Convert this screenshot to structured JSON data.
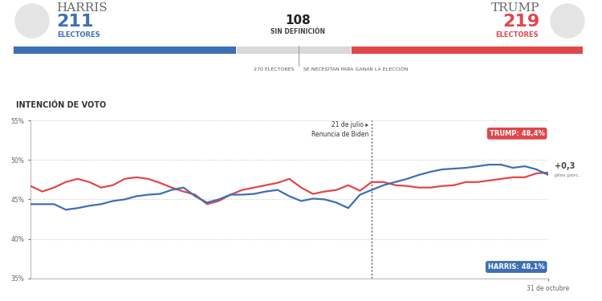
{
  "header": {
    "candidates": [
      {
        "name": "HARRIS",
        "electors": 211,
        "label": "ELECTORES",
        "color": "#3d6fb6"
      },
      {
        "name": "TRUMP",
        "electors": 219,
        "label": "ELECTORES",
        "color": "#e0474c"
      }
    ],
    "undecided": {
      "electors": 108,
      "label": "SIN DEFINICIÓN",
      "color": "#d9d9d9"
    },
    "threshold": {
      "electors": 270,
      "label": "270 ELECTORES",
      "note": "SE NECESITAN PARA GANAR LA ELECCIÓN"
    }
  },
  "chart_data": {
    "type": "line",
    "title": "INTENCIÓN DE VOTO",
    "categories": [
      null,
      null,
      null,
      null,
      null,
      null,
      null,
      null,
      null,
      null,
      null,
      null,
      null,
      null,
      null,
      null,
      null,
      null,
      null,
      null,
      null,
      null,
      null,
      null,
      null,
      null,
      null,
      null,
      null,
      null,
      null,
      null,
      null,
      null,
      null,
      null,
      null,
      null,
      null,
      null,
      null,
      null,
      null,
      null,
      "31 de octubre"
    ],
    "series": [
      {
        "name": "TRUMP",
        "color": "#e0474c",
        "end_label": "TRUMP: 48,4%",
        "values": [
          46.7,
          46.0,
          46.5,
          47.2,
          47.6,
          47.2,
          46.5,
          46.8,
          47.6,
          47.8,
          47.6,
          47.1,
          46.5,
          46.0,
          45.6,
          44.4,
          44.8,
          45.6,
          46.2,
          46.5,
          46.8,
          47.1,
          47.6,
          46.5,
          45.7,
          46.0,
          46.2,
          46.8,
          46.1,
          47.2,
          47.2,
          46.8,
          46.7,
          46.5,
          46.5,
          46.7,
          46.8,
          47.2,
          47.2,
          47.4,
          47.6,
          47.8,
          47.8,
          48.3,
          48.4
        ]
      },
      {
        "name": "HARRIS",
        "color": "#3d6fb6",
        "end_label": "HARRIS: 48,1%",
        "values": [
          44.4,
          44.4,
          44.4,
          43.7,
          43.9,
          44.2,
          44.4,
          44.8,
          45.0,
          45.4,
          45.6,
          45.7,
          46.2,
          46.5,
          45.4,
          44.6,
          45.0,
          45.6,
          45.6,
          45.7,
          46.0,
          46.2,
          45.4,
          44.8,
          45.1,
          45.0,
          44.6,
          43.9,
          45.6,
          46.2,
          46.8,
          47.2,
          47.6,
          48.1,
          48.5,
          48.8,
          48.9,
          49.0,
          49.2,
          49.4,
          49.4,
          49.0,
          49.2,
          48.8,
          48.1
        ]
      }
    ],
    "event": {
      "x": 29,
      "label": "21 de julio ▸",
      "text": "Renuncia de Biden"
    },
    "difference": {
      "text": "+0,3",
      "unit": "ptos porc."
    },
    "ylim": [
      35,
      55
    ],
    "yticks": [
      {
        "value": 35,
        "label": "35%"
      },
      {
        "value": 40,
        "label": "40%"
      },
      {
        "value": 45,
        "label": "45%"
      },
      {
        "value": 50,
        "label": "50%"
      },
      {
        "value": 55,
        "label": "55%"
      }
    ],
    "grid": true
  }
}
